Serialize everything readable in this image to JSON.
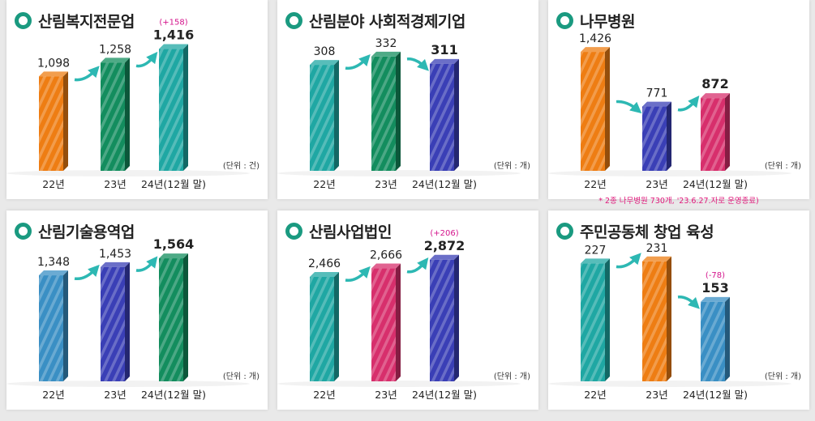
{
  "colors": {
    "orange": "#ee7d13",
    "green": "#138d5e",
    "teal": "#1fa7a3",
    "blue": "#3a3fb6",
    "steel": "#3a8fc4",
    "pink": "#d72f6c",
    "arrow": "#2db8b3",
    "change": "#d4148c"
  },
  "chart_data": [
    {
      "type": "bar",
      "title": "산림복지전문업",
      "categories": [
        "22년",
        "23년",
        "24년(12월 말)"
      ],
      "values": [
        1098,
        1258,
        1416
      ],
      "value_labels": [
        "1,098",
        "1,258",
        "1,416"
      ],
      "bar_colors": [
        "orange",
        "green",
        "teal"
      ],
      "change_label": "(+158)",
      "unit": "(단위 : 건)",
      "ylim": [
        0,
        1600
      ]
    },
    {
      "type": "bar",
      "title": "산림분야 사회적경제기업",
      "categories": [
        "22년",
        "23년",
        "24년(12월 말)"
      ],
      "values": [
        308,
        332,
        311
      ],
      "value_labels": [
        "308",
        "332",
        "311"
      ],
      "bar_colors": [
        "teal",
        "green",
        "blue"
      ],
      "unit": "(단위 : 개)",
      "ylim": [
        0,
        400
      ]
    },
    {
      "type": "bar",
      "title": "나무병원",
      "categories": [
        "22년",
        "23년",
        "24년(12월 말)"
      ],
      "values": [
        1426,
        771,
        872
      ],
      "value_labels": [
        "1,426",
        "771",
        "872"
      ],
      "bar_colors": [
        "orange",
        "blue",
        "pink"
      ],
      "unit": "(단위 : 개)",
      "note": "* 2종 나무병원 730개, '23.6.27.자로 운영종료)",
      "ylim": [
        0,
        1650
      ]
    },
    {
      "type": "bar",
      "title": "산림기술용역업",
      "categories": [
        "22년",
        "23년",
        "24년(12월 말)"
      ],
      "values": [
        1348,
        1453,
        1564
      ],
      "value_labels": [
        "1,348",
        "1,453",
        "1,564"
      ],
      "bar_colors": [
        "steel",
        "blue",
        "green"
      ],
      "unit": "(단위 : 개)",
      "ylim": [
        0,
        1750
      ]
    },
    {
      "type": "bar",
      "title": "산림사업법인",
      "categories": [
        "22년",
        "23년",
        "24년(12월 말)"
      ],
      "values": [
        2466,
        2666,
        2872
      ],
      "value_labels": [
        "2,466",
        "2,666",
        "2,872"
      ],
      "bar_colors": [
        "teal",
        "pink",
        "blue"
      ],
      "change_label": "(+206)",
      "unit": "(단위 : 개)",
      "ylim": [
        0,
        3250
      ]
    },
    {
      "type": "bar",
      "title": "주민공동체 창업 육성",
      "categories": [
        "22년",
        "23년",
        "24년(12월 말)"
      ],
      "values": [
        227,
        231,
        153
      ],
      "value_labels": [
        "227",
        "231",
        "153"
      ],
      "bar_colors": [
        "teal",
        "orange",
        "steel"
      ],
      "change_label": "(-78)",
      "unit": "(단위 : 개)",
      "ylim": [
        0,
        265
      ]
    }
  ]
}
